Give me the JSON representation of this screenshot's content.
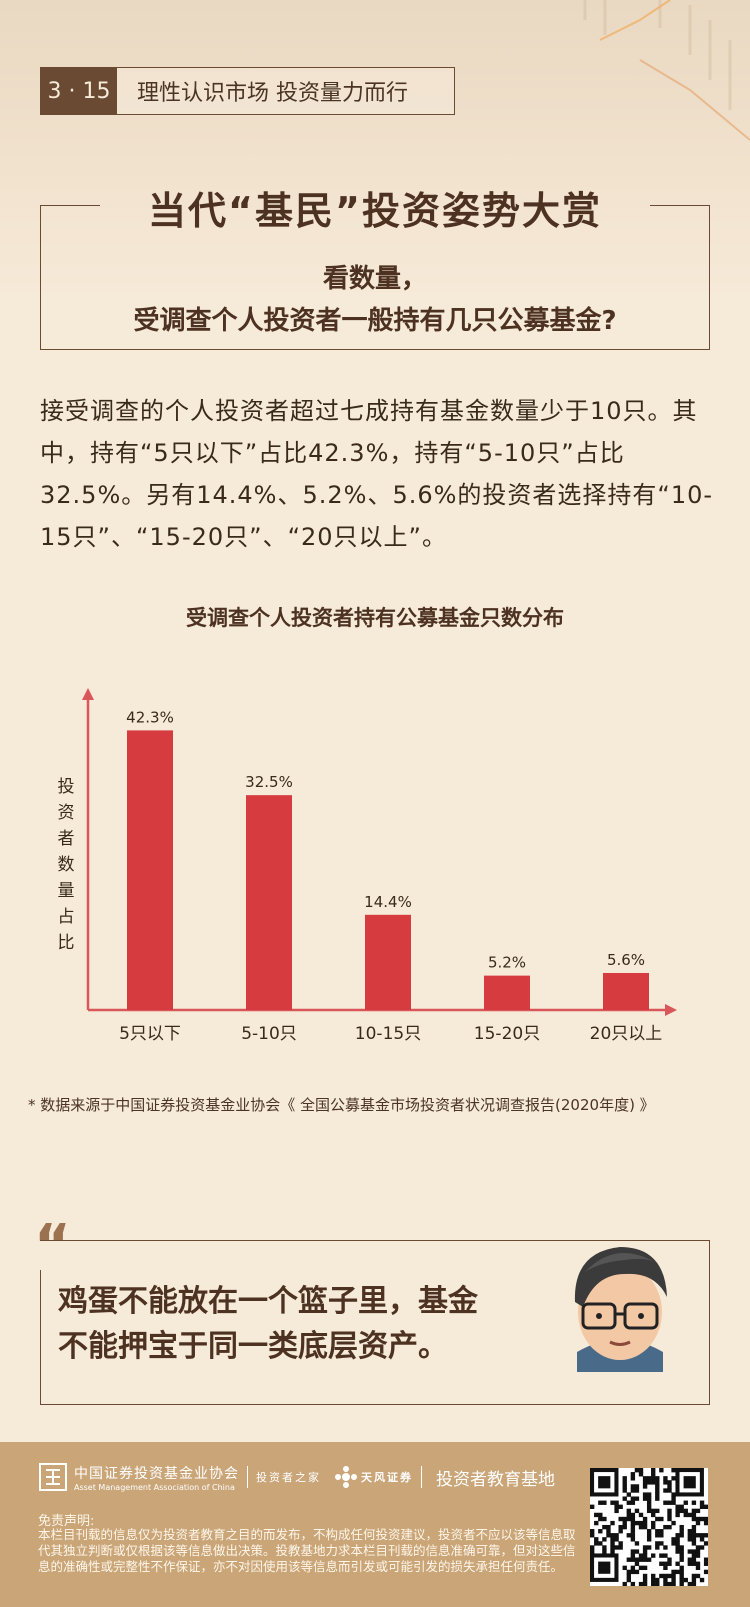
{
  "tag": {
    "number": "3 · 15",
    "text": "理性认识市场 投资量力而行"
  },
  "main_title": "当代“基民”投资姿势大赏",
  "sub_title_line1": "看数量，",
  "sub_title_line2": "受调查个人投资者一般持有几只公募基金?",
  "paragraph": "接受调查的个人投资者超过七成持有基金数量少于10只。其中，持有“5只以下”占比42.3%，持有“5-10只”占比32.5%。另有14.4%、5.2%、5.6%的投资者选择持有“10-15只”、“15-20只”、“20只以上”。",
  "chart_data": {
    "type": "bar",
    "title": "受调查个人投资者持有公募基金只数分布",
    "ylabel": "投资者数量占比",
    "xlabel": "",
    "categories": [
      "5只以下",
      "5-10只",
      "10-15只",
      "15-20只",
      "20只以上"
    ],
    "values": [
      42.3,
      32.5,
      14.4,
      5.2,
      5.6
    ],
    "value_labels": [
      "42.3%",
      "32.5%",
      "14.4%",
      "5.2%",
      "5.6%"
    ],
    "unit": "%",
    "ylim": [
      0,
      45
    ],
    "grid": false,
    "legend": "none",
    "bar_color": "#d63b3f",
    "axis_color": "#d9565a"
  },
  "source": "* 数据来源于中国证券投资基金业协会《 全国公募基金市场投资者状况调查报告(2020年度) 》",
  "quote": {
    "mark": "“",
    "line1": "鸡蛋不能放在一个篮子里，基金",
    "line2": "不能押宝于同一类底层资产。"
  },
  "footer": {
    "org_cn": "中国证券投资基金业协会",
    "org_en": "Asset Management Association of China",
    "investor_home": "投资者之家",
    "broker": "天风证券",
    "edu_base": "投资者教育基地",
    "disclaimer_title": "免责声明:",
    "disclaimer": "本栏目刊载的信息仅为投资者教育之目的而发布，不构成任何投资建议，投资者不应以该等信息取代其独立判断或仅根据该等信息做出决策。投教基地力求本栏目刊载的信息准确可靠，但对这些信息的准确性或完整性不作保证，亦不对因使用该等信息而引发或可能引发的损失承担任何责任。"
  },
  "colors": {
    "brown": "#6b4a33",
    "red": "#d63b3f",
    "footer": "#c9a578",
    "background": "#f6ead8"
  },
  "icons": [
    "quote-icon",
    "avatar-illustration",
    "org-logo-icon",
    "broker-logo-icon",
    "qr-code"
  ]
}
